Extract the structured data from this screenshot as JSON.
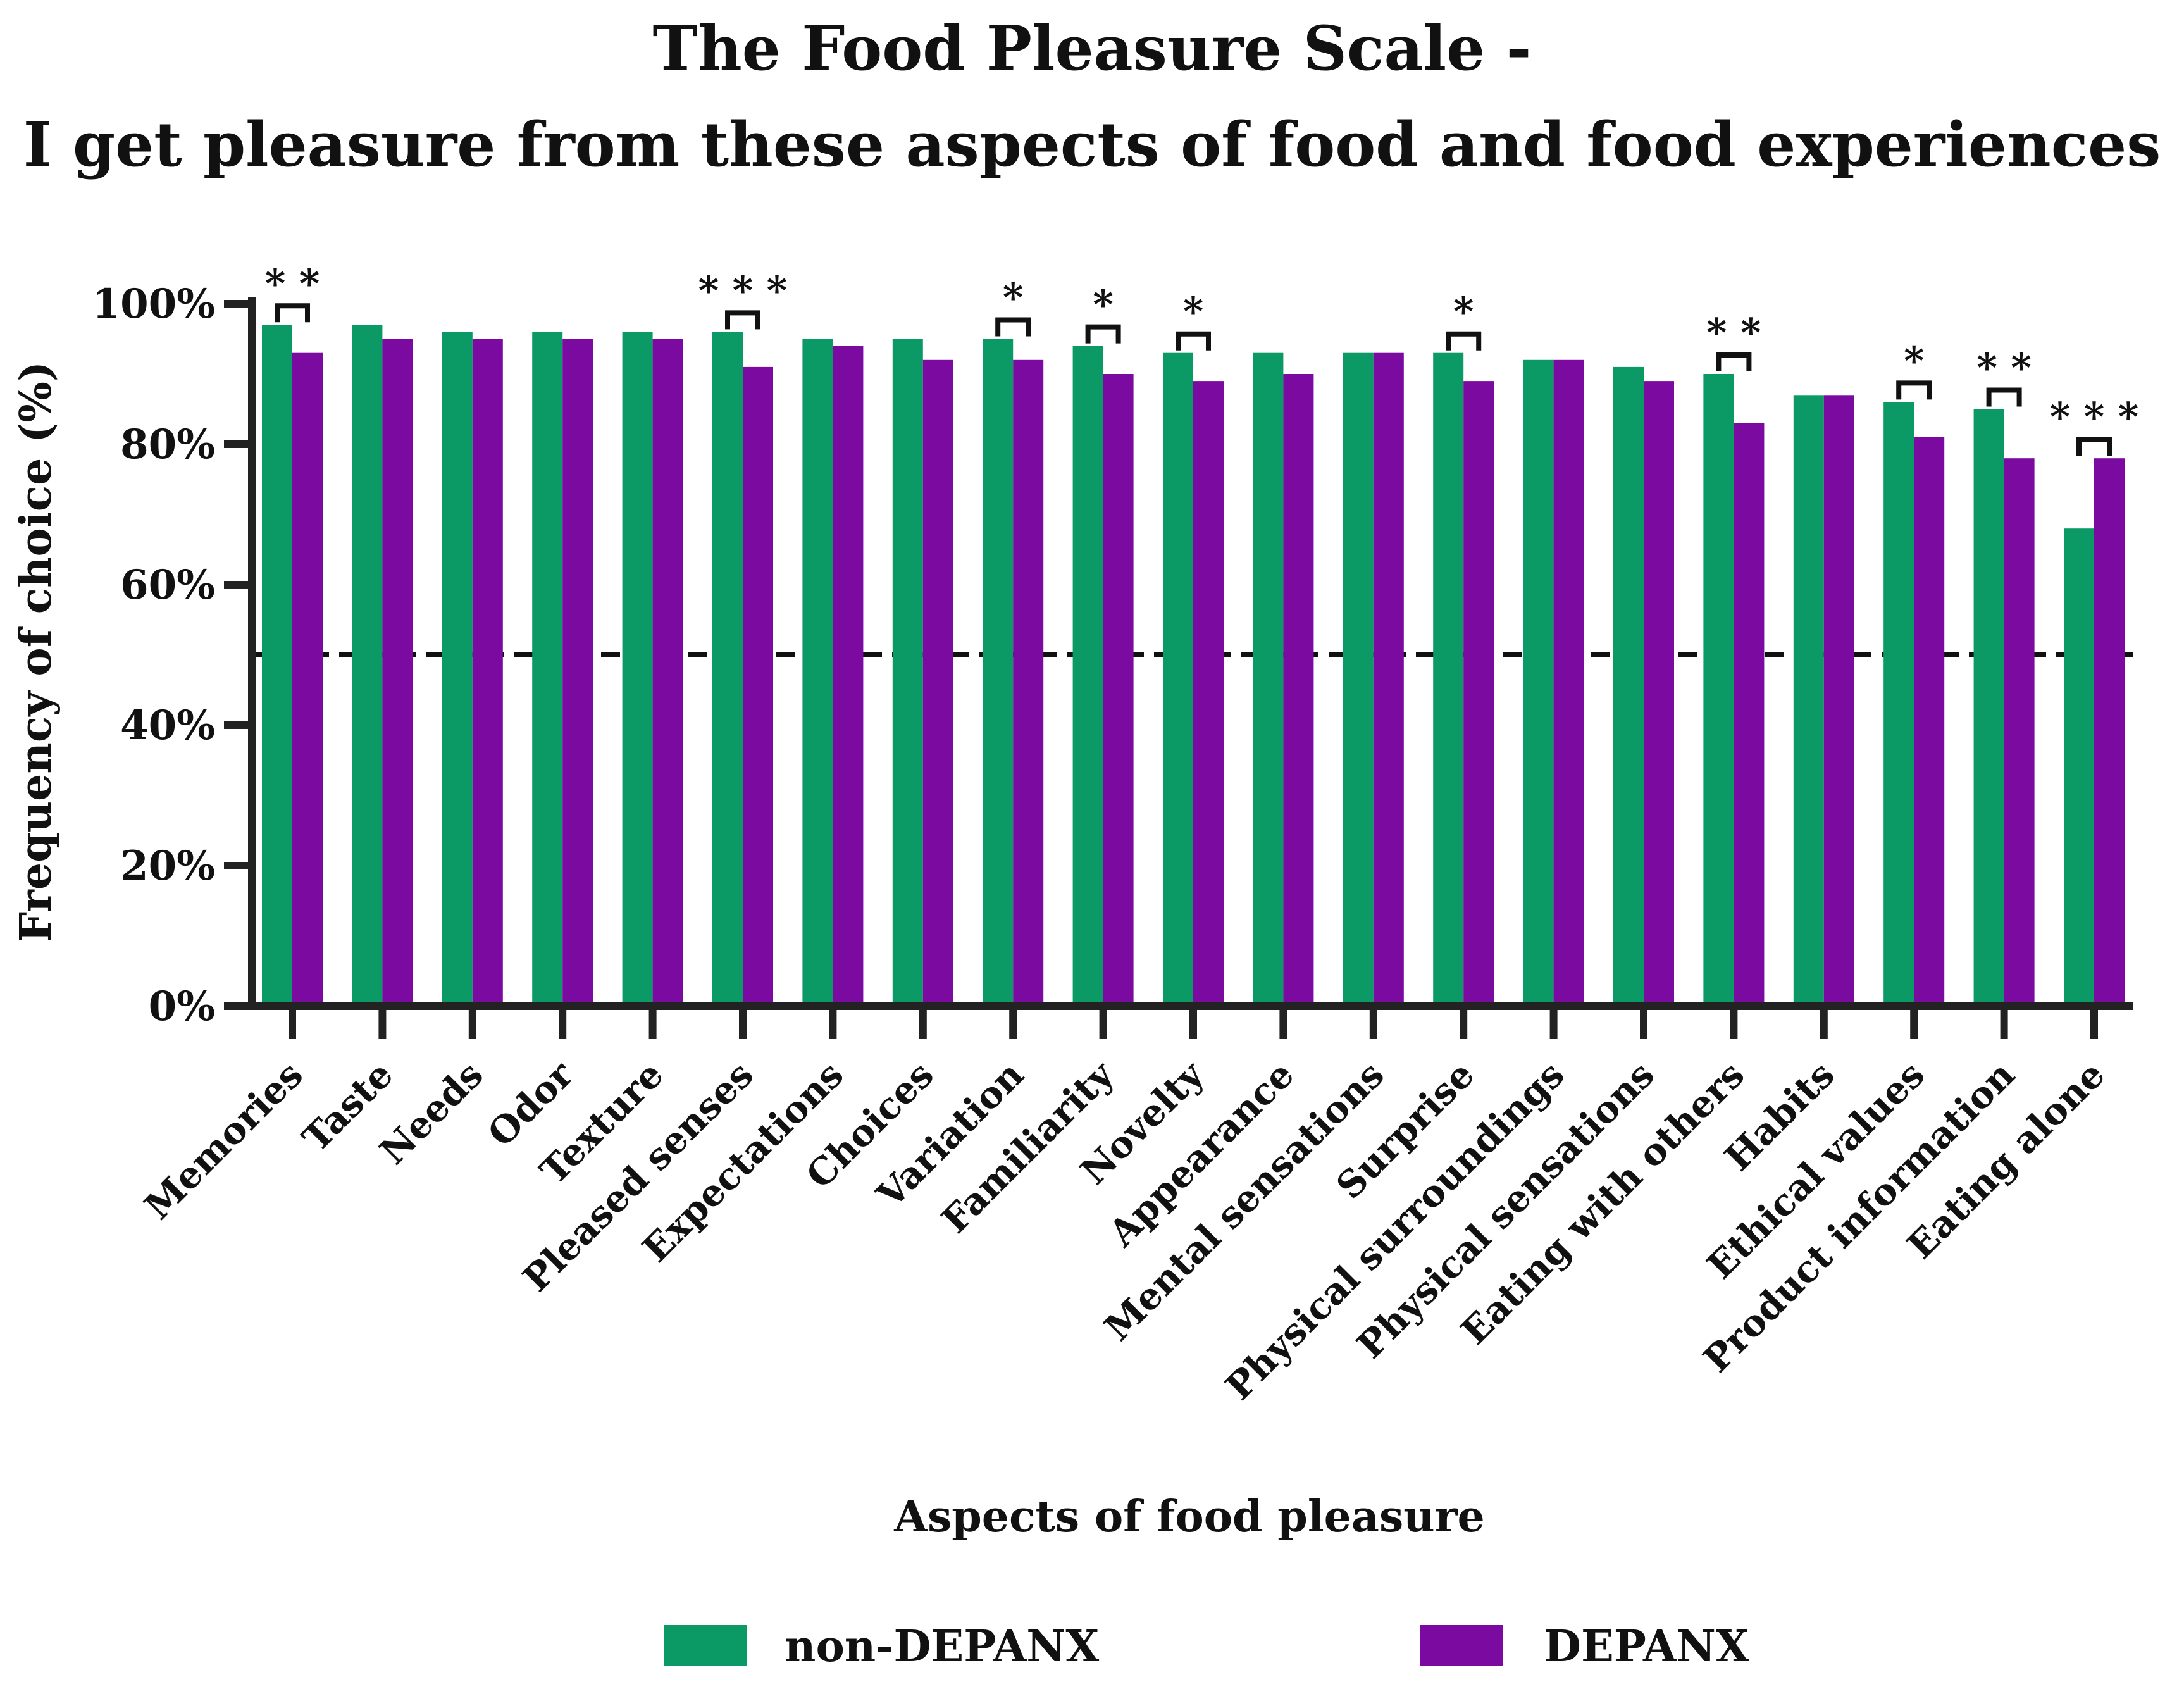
{
  "chart_data": {
    "type": "bar",
    "title_lines": [
      "The Food Pleasure Scale -",
      "I get pleasure from these aspects of food and food experiences"
    ],
    "xlabel": "Aspects of food pleasure",
    "ylabel": "Frequency of choice (%)",
    "ylim": [
      0,
      100
    ],
    "yticks": [
      "0%",
      "20%",
      "40%",
      "60%",
      "80%",
      "100%"
    ],
    "reference_line": 50,
    "categories": [
      "Memories",
      "Taste",
      "Needs",
      "Odor",
      "Texture",
      "Pleased senses",
      "Expectations",
      "Choices",
      "Variation",
      "Familiarity",
      "Novelty",
      "Appearance",
      "Mental sensations",
      "Surprise",
      "Physical surroundings",
      "Physical sensations",
      "Eating with others",
      "Habits",
      "Ethical values",
      "Product information",
      "Eating alone"
    ],
    "series": [
      {
        "name": "non-DEPANX",
        "color": "#0b9965",
        "values": [
          97,
          97,
          96,
          96,
          96,
          96,
          95,
          95,
          95,
          94,
          93,
          93,
          93,
          93,
          92,
          91,
          90,
          87,
          86,
          85,
          68
        ]
      },
      {
        "name": "DEPANX",
        "color": "#7a0aa0",
        "values": [
          93,
          95,
          95,
          95,
          95,
          91,
          94,
          92,
          92,
          90,
          89,
          90,
          93,
          89,
          92,
          89,
          83,
          87,
          81,
          78,
          78
        ]
      }
    ],
    "significance": [
      "* *",
      "",
      "",
      "",
      "",
      "* * *",
      "",
      "",
      "*",
      "*",
      "*",
      "",
      "",
      "*",
      "",
      "",
      "* *",
      "",
      "*",
      "* *",
      "* * *"
    ],
    "legend": [
      "non-DEPANX",
      "DEPANX"
    ],
    "legend_position": "bottom"
  }
}
